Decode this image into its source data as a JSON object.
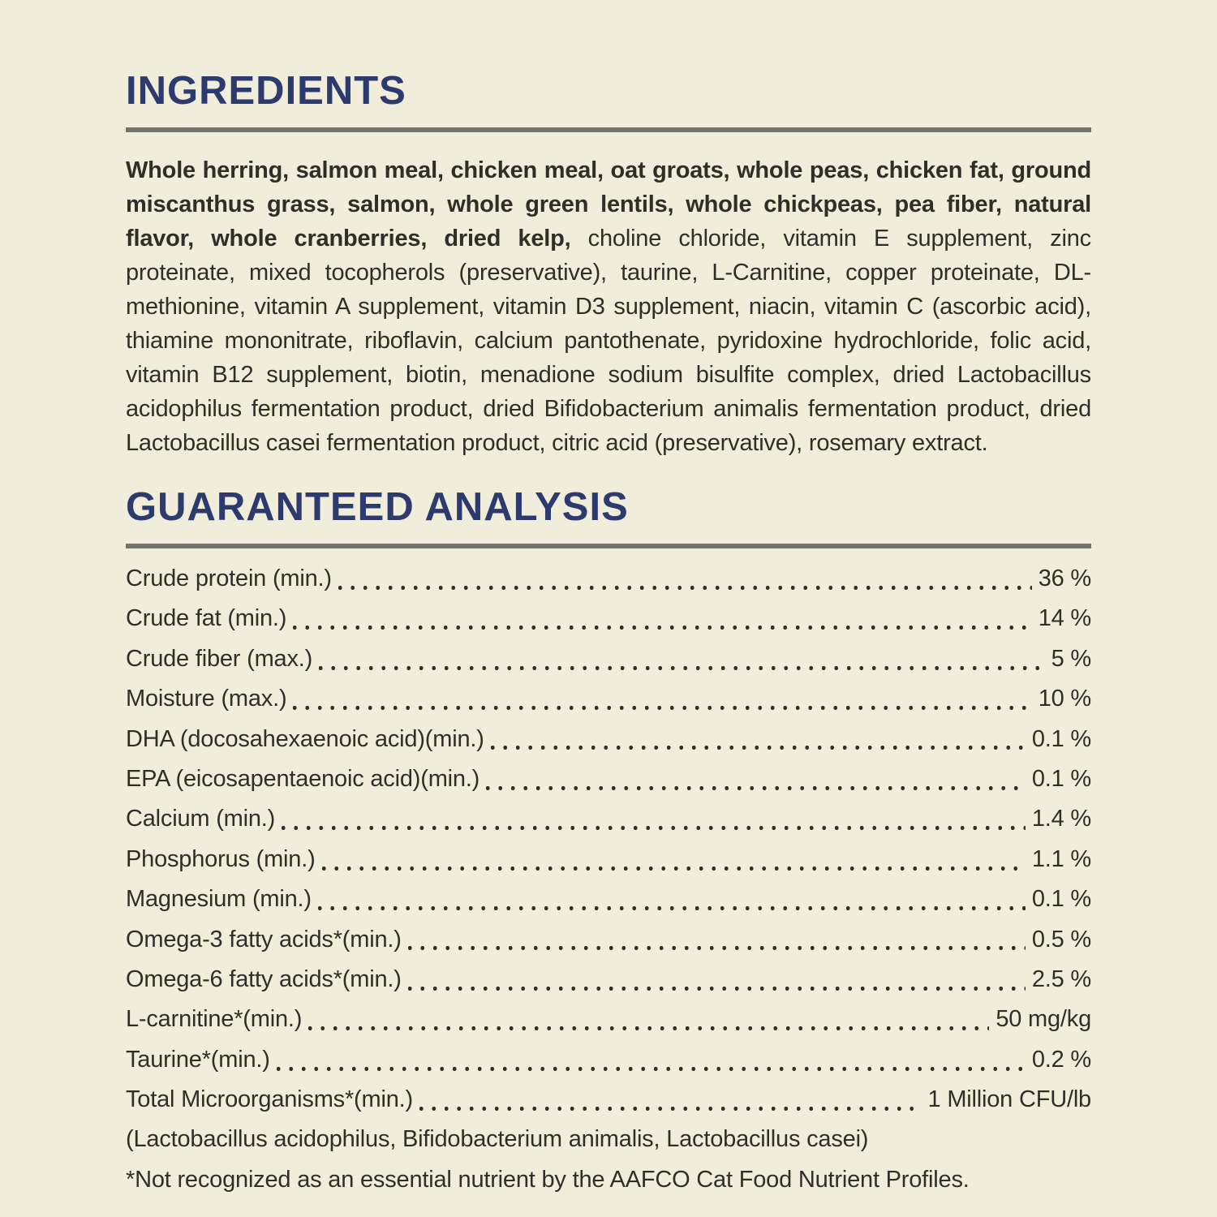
{
  "colors": {
    "background": "#f0eedb",
    "heading_navy": "#2d3a6e",
    "body_text": "#2f2e27",
    "divider_gray": "#74746e"
  },
  "ingredients": {
    "title": "INGREDIENTS",
    "bold_text": "Whole herring, salmon meal, chicken meal, oat groats, whole peas, chicken fat, ground miscanthus grass, salmon, whole green lentils, whole chickpeas, pea fiber, natural flavor, whole cranberries, dried kelp,",
    "regular_text": " choline chloride, vitamin E supplement, zinc proteinate, mixed tocopherols (preservative), taurine, L-Carnitine, copper proteinate, DL-methionine, vitamin A supplement, vitamin D3 supplement, niacin, vitamin C (ascorbic acid), thiamine mononitrate, riboflavin, calcium pantothenate, pyridoxine hydrochloride, folic acid, vitamin B12 supplement, biotin, menadione sodium bisulfite complex, dried Lactobacillus acidophilus fermentation product, dried Bifidobacterium animalis fermentation product, dried Lactobacillus casei fermentation product, citric acid (preservative), rosemary extract."
  },
  "analysis": {
    "title": "GUARANTEED ANALYSIS",
    "rows": [
      {
        "label": "Crude protein (min.)",
        "value": "36 %"
      },
      {
        "label": "Crude fat (min.)",
        "value": "14 %"
      },
      {
        "label": "Crude fiber (max.)",
        "value": "5 %"
      },
      {
        "label": "Moisture (max.)",
        "value": "10 %"
      },
      {
        "label": "DHA (docosahexaenoic acid)(min.)",
        "value": "0.1 %"
      },
      {
        "label": "EPA (eicosapentaenoic acid)(min.)",
        "value": "0.1 %"
      },
      {
        "label": "Calcium (min.)",
        "value": "1.4 %"
      },
      {
        "label": "Phosphorus (min.)",
        "value": "1.1 %"
      },
      {
        "label": "Magnesium (min.)",
        "value": "0.1 %"
      },
      {
        "label": "Omega-3 fatty acids*(min.)",
        "value": "0.5 %"
      },
      {
        "label": "Omega-6 fatty acids*(min.)",
        "value": "2.5 %"
      },
      {
        "label": "L-carnitine*(min.)",
        "value": "50 mg/kg"
      },
      {
        "label": "Taurine*(min.)",
        "value": "0.2 %"
      },
      {
        "label": "Total Microorganisms*(min.)",
        "value": "1 Million CFU/lb"
      }
    ],
    "organisms_note": "(Lactobacillus acidophilus, Bifidobacterium animalis, Lactobacillus casei)",
    "footnote": "*Not recognized as an essential nutrient by the AAFCO Cat Food Nutrient Profiles."
  }
}
